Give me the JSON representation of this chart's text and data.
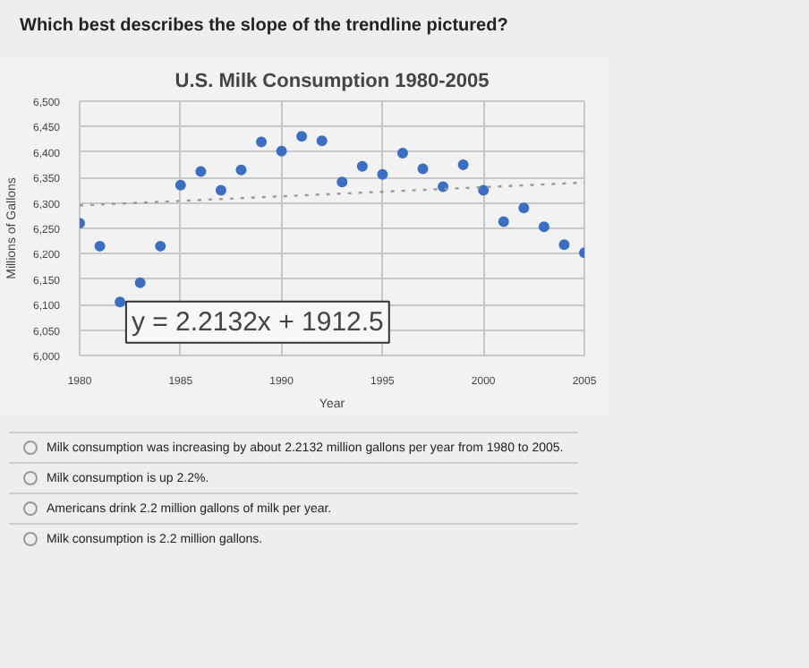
{
  "chart_data": {
    "type": "scatter",
    "title": "U.S. Milk Consumption 1980-2005",
    "xlabel": "Year",
    "ylabel": "Millions of Gallons",
    "x": [
      1980,
      1981,
      1982,
      1983,
      1984,
      1985,
      1986,
      1987,
      1988,
      1989,
      1990,
      1991,
      1992,
      1993,
      1994,
      1995,
      1996,
      1997,
      1998,
      1999,
      2000,
      2001,
      2002,
      2003,
      2004,
      2005
    ],
    "series": [
      {
        "color": "#3a6fc4",
        "values": [
          6260,
          6215,
          6105,
          6143,
          6215,
          6335,
          6362,
          6325,
          6365,
          6420,
          6402,
          6431,
          6422,
          6341,
          6372,
          6356,
          6398,
          6367,
          6332,
          6375,
          6325,
          6263,
          6290,
          6253,
          6218,
          6202
        ]
      },
      {
        "type": "line",
        "color": "#9a9a9a",
        "line_style": "dotted",
        "marker": "none",
        "x": [
          1980,
          2005
        ],
        "values": [
          6295,
          6340
        ]
      }
    ],
    "xlim": [
      1980,
      2005
    ],
    "ylim": [
      6000,
      6500
    ],
    "xticks": [
      1980,
      1985,
      1990,
      1995,
      2000,
      2005
    ],
    "yticks": [
      {
        "value": 6000,
        "label": "6,000"
      },
      {
        "value": 6050,
        "label": "6,050"
      },
      {
        "value": 6100,
        "label": "6,100"
      },
      {
        "value": 6150,
        "label": "6,150"
      },
      {
        "value": 6200,
        "label": "6,200"
      },
      {
        "value": 6250,
        "label": "6,250"
      },
      {
        "value": 6300,
        "label": "6,300"
      },
      {
        "value": 6350,
        "label": "6,350"
      },
      {
        "value": 6400,
        "label": "6,400"
      },
      {
        "value": 6450,
        "label": "6,450"
      },
      {
        "value": 6500,
        "label": "6,500"
      }
    ],
    "grid": true,
    "marker": "circle",
    "annotations": [
      "Which best describes the slope of the trendline pictured?",
      "y = 2.2132x + 1912.5",
      "Milk consumption was increasing by about 2.2132 million gallons per year from 1980 to 2005.",
      "Milk consumption is up 2.2%.",
      "Americans drink 2.2 million gallons of milk per year.",
      "Milk consumption is 2.2 million gallons."
    ]
  }
}
